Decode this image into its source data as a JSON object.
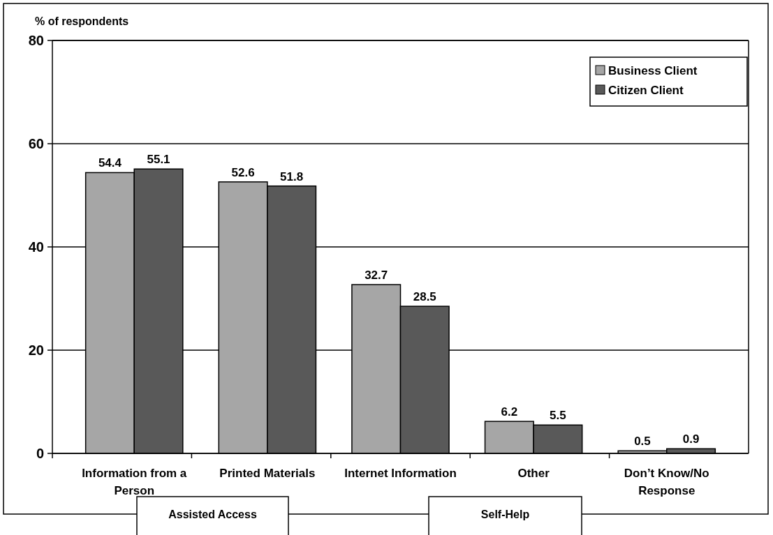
{
  "chart_data": {
    "type": "bar",
    "ylabel": "% of respondents",
    "categories": [
      "Information from a Person",
      "Printed Materials",
      "Internet Information",
      "Other",
      "Don’t Know/No Response"
    ],
    "series": [
      {
        "name": "Business Client",
        "color": "#a6a6a6",
        "values": [
          54.4,
          52.6,
          32.7,
          6.2,
          0.5
        ]
      },
      {
        "name": "Citizen Client",
        "color": "#595959",
        "values": [
          55.1,
          51.8,
          28.5,
          5.5,
          0.9
        ]
      }
    ],
    "ylim": [
      0,
      80
    ],
    "yticks": [
      0,
      20,
      40,
      60,
      80
    ],
    "grid": "y",
    "legend": "top right",
    "data_labels": true,
    "annotations": [
      "Assisted Access",
      "Self-Help"
    ]
  }
}
